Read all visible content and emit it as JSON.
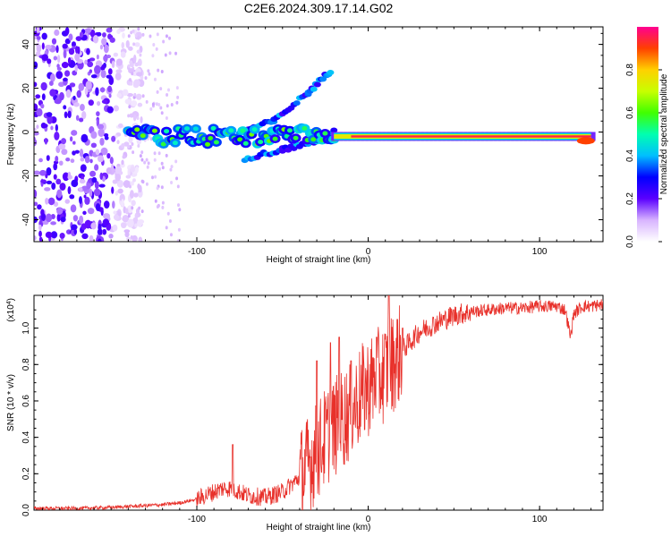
{
  "title": "C2E6.2024.309.17.14.G02",
  "chart_data": [
    {
      "type": "heatmap",
      "xlabel": "Height of straight line (km)",
      "ylabel": "Frequency (Hz)",
      "xlim": [
        -195,
        137
      ],
      "ylim": [
        -50,
        48
      ],
      "xticks": [
        -100,
        0,
        100
      ],
      "yticks": [
        -40,
        -20,
        0,
        20,
        40
      ],
      "colorbar": {
        "label": "Normalized spectral amplitude",
        "range": [
          0.0,
          1.0
        ],
        "ticks": [
          "0.0",
          "0.2",
          "0.4",
          "0.6",
          "0.8"
        ],
        "tick_values": [
          0.0,
          0.2,
          0.4,
          0.6,
          0.8
        ]
      },
      "signal_band": {
        "frequency_hz": -2,
        "segments": [
          {
            "x_start": -140,
            "x_end": -20,
            "description_amplitude": 0.35
          },
          {
            "x_start": -20,
            "x_end": 130,
            "description_amplitude": 0.95
          }
        ]
      },
      "drift_branches": [
        {
          "x": [
            -75,
            -55,
            -35,
            -22
          ],
          "y": [
            0,
            5,
            18,
            28
          ]
        },
        {
          "x": [
            -72,
            -50,
            -30,
            -20
          ],
          "y": [
            -12,
            -8,
            -4,
            0
          ]
        }
      ],
      "noise_region": {
        "x_start": -195,
        "x_end": -140
      }
    },
    {
      "type": "line",
      "xlabel": "Height of straight line (km)",
      "ylabel": "SNR (10 * v/v)",
      "y_multiplier": "(x10^4)",
      "xlim": [
        -195,
        137
      ],
      "ylim": [
        0.0,
        1.18
      ],
      "xticks": [
        -100,
        0,
        100
      ],
      "yticks": [
        0.0,
        0.2,
        0.4,
        0.6,
        0.8,
        1.0
      ],
      "color": "#e8302a",
      "series": [
        {
          "x": [
            -195,
            -170,
            -150,
            -140,
            -130,
            -120,
            -110,
            -100,
            -90,
            -85,
            -80,
            -75,
            -70,
            -60,
            -50,
            -40,
            -35,
            -30,
            -25,
            -20,
            -15,
            -10,
            -5,
            0,
            5,
            10,
            15,
            20,
            25,
            30,
            40,
            50,
            60,
            70,
            80,
            90,
            100,
            110,
            115,
            118,
            120,
            125,
            130,
            137
          ],
          "y": [
            0.01,
            0.01,
            0.015,
            0.02,
            0.025,
            0.03,
            0.04,
            0.06,
            0.1,
            0.12,
            0.12,
            0.1,
            0.08,
            0.07,
            0.1,
            0.18,
            0.25,
            0.32,
            0.4,
            0.45,
            0.5,
            0.55,
            0.62,
            0.68,
            0.72,
            0.76,
            0.82,
            0.88,
            0.93,
            0.98,
            1.03,
            1.07,
            1.09,
            1.1,
            1.11,
            1.11,
            1.12,
            1.12,
            1.1,
            0.95,
            1.08,
            1.12,
            1.12,
            1.13
          ],
          "spikes": [
            {
              "x": -79,
              "y": 0.36
            },
            {
              "x": -30,
              "y": 0.82
            },
            {
              "x": -22,
              "y": 0.92
            },
            {
              "x": -17,
              "y": 0.95
            },
            {
              "x": -10,
              "y": 0.82
            },
            {
              "x": 5,
              "y": 0.95
            },
            {
              "x": 12,
              "y": 1.2
            },
            {
              "x": 20,
              "y": 1.0
            }
          ]
        }
      ]
    }
  ]
}
